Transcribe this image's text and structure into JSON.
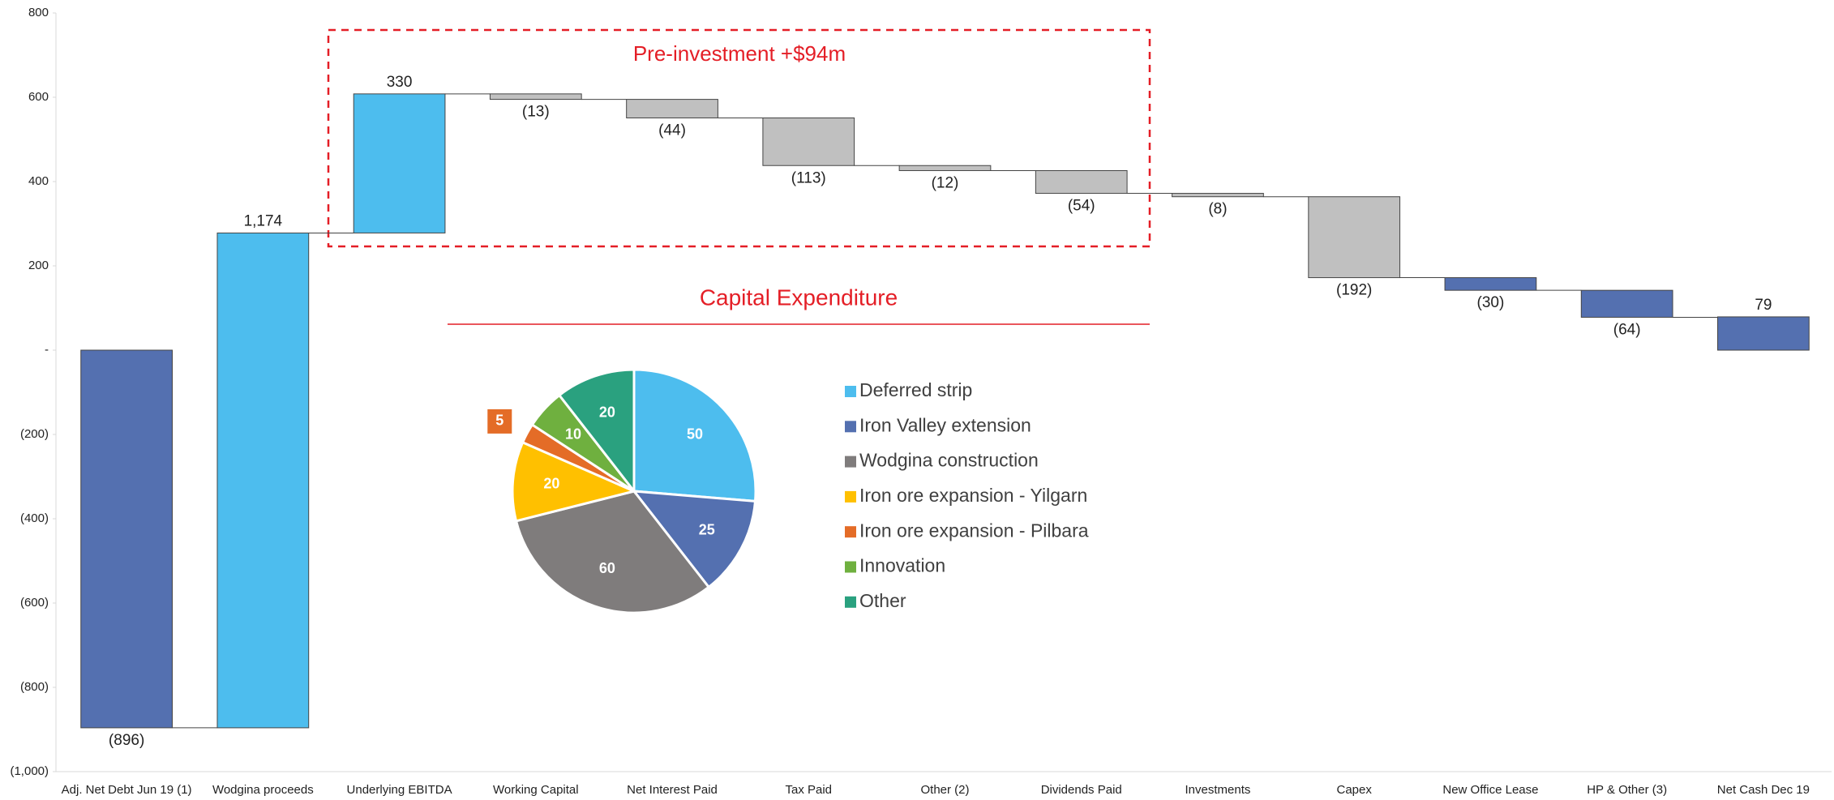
{
  "chart_data": [
    {
      "type": "waterfall",
      "annotations": [
        "Pre-investment +$94m"
      ],
      "categories": [
        "Adj. Net Debt Jun 19 (1)",
        "Wodgina proceeds",
        "Underlying EBITDA",
        "Working Capital",
        "Net Interest Paid",
        "Tax Paid",
        "Other (2)",
        "Dividends Paid",
        "Investments",
        "Capex",
        "New Office Lease",
        "HP & Other (3)",
        "Net Cash Dec 19"
      ],
      "values": [
        -896,
        1174,
        330,
        -13,
        -44,
        -113,
        -12,
        -54,
        -8,
        -192,
        -30,
        -64,
        79
      ],
      "value_labels": [
        "(896)",
        "1,174",
        "330",
        "(13)",
        "(44)",
        "(113)",
        "(12)",
        "(54)",
        "(8)",
        "(192)",
        "(30)",
        "(64)",
        "79"
      ],
      "measure": [
        "absolute",
        "relative",
        "relative",
        "relative",
        "relative",
        "relative",
        "relative",
        "relative",
        "relative",
        "relative",
        "relative",
        "relative",
        "total"
      ],
      "colors": [
        "#5470b0",
        "#4dbdee",
        "#4dbdee",
        "#c0c0c0",
        "#c0c0c0",
        "#c0c0c0",
        "#c0c0c0",
        "#c0c0c0",
        "#c0c0c0",
        "#c0c0c0",
        "#5470b0",
        "#5470b0",
        "#5470b0"
      ],
      "ylim": [
        -1000,
        800
      ],
      "yticks": [
        800,
        600,
        400,
        200,
        {
          "value": 0,
          "label": "-"
        },
        {
          "value": -200,
          "label": "(200)"
        },
        {
          "value": -400,
          "label": "(400)"
        },
        {
          "value": -600,
          "label": "(600)"
        },
        {
          "value": -800,
          "label": "(800)"
        },
        {
          "value": -1000,
          "label": "(1,000)"
        }
      ]
    },
    {
      "type": "pie",
      "title": "Capital Expenditure",
      "categories": [
        "Deferred strip",
        "Iron Valley extension",
        "Wodgina construction",
        "Iron ore expansion - Yilgarn",
        "Iron ore expansion - Pilbara",
        "Innovation",
        "Other"
      ],
      "values": [
        50,
        25,
        60,
        20,
        5,
        10,
        20
      ],
      "colors": [
        "#4dbdee",
        "#5470b0",
        "#7f7c7c",
        "#ffc000",
        "#e46c27",
        "#6fb03f",
        "#2aa17f"
      ]
    }
  ]
}
